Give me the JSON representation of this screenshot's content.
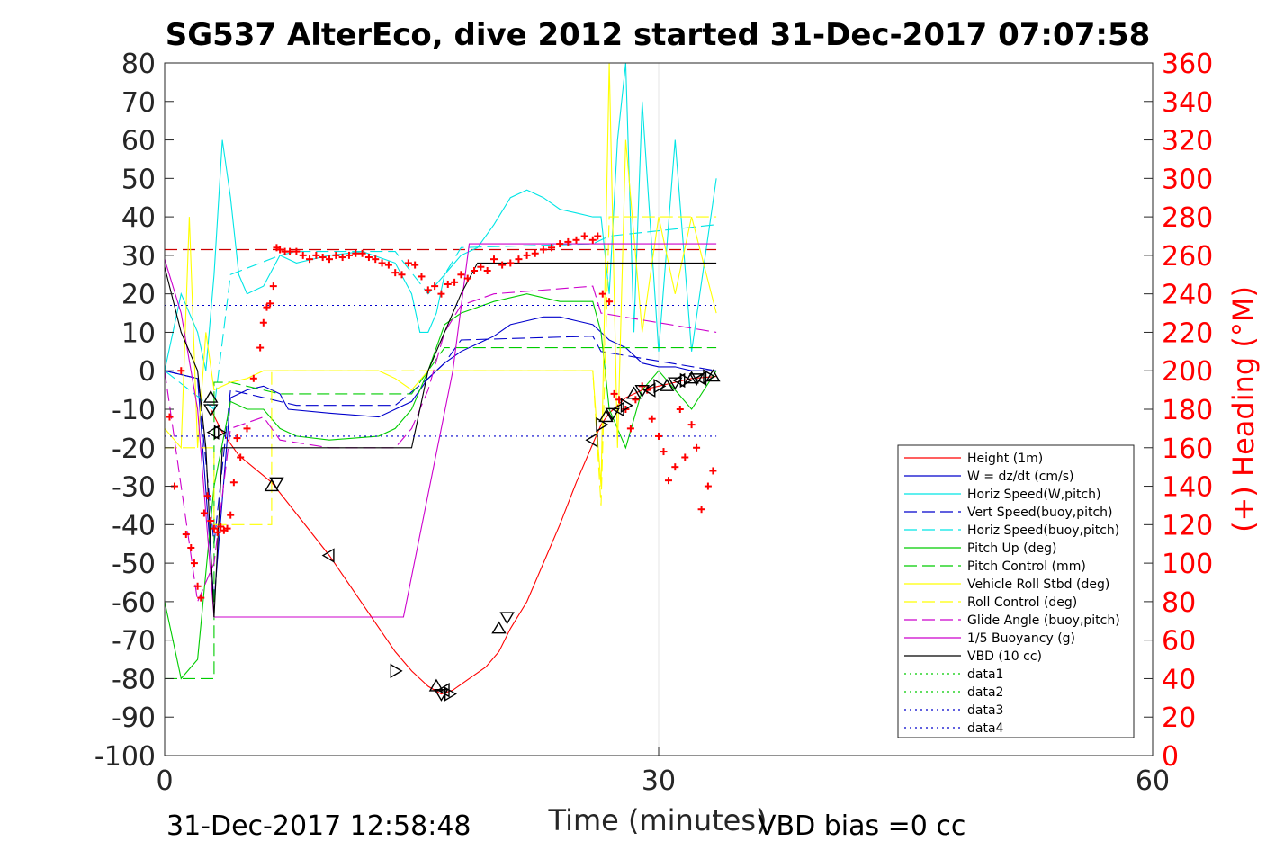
{
  "chart_data": {
    "type": "line",
    "title": "SG537 AlterEco, dive 2012 started 31-Dec-2017 07:07:58",
    "xlabel": "Time (minutes)",
    "ylabel": "",
    "y2label": "(+) Heading (°M)",
    "xlim": [
      0,
      60
    ],
    "ylim": [
      -100,
      80
    ],
    "y2lim": [
      0,
      360
    ],
    "xticks": [
      "0",
      "30",
      "60"
    ],
    "yticks": [
      "80",
      "70",
      "60",
      "50",
      "40",
      "30",
      "20",
      "10",
      "0",
      "-10",
      "-20",
      "-30",
      "-40",
      "-50",
      "-60",
      "-70",
      "-80",
      "-90",
      "-100"
    ],
    "y2ticks": [
      "360",
      "340",
      "320",
      "300",
      "280",
      "260",
      "240",
      "220",
      "200",
      "180",
      "160",
      "140",
      "120",
      "100",
      "80",
      "60",
      "40",
      "20",
      "0"
    ],
    "grid": "x only at 30",
    "legend_position": "bottom-right",
    "footer_left": "31-Dec-2017 12:58:48",
    "footer_right": "VBD bias =0 cc",
    "series": [
      {
        "name": "Height (1m)",
        "color": "#ff0000",
        "style": "solid",
        "x": [
          2.8,
          3.5,
          4.5,
          6.5,
          10,
          14,
          15,
          16,
          16.8,
          17.5,
          18.5,
          19.5,
          20.3,
          21,
          22,
          23,
          24,
          25,
          26,
          26.5,
          27,
          27.5,
          28,
          29,
          30,
          31,
          32,
          33.5
        ],
        "y": [
          -10,
          -16,
          -22,
          -29,
          -48,
          -73,
          -78,
          -82,
          -84,
          -83,
          -80,
          -77,
          -73,
          -67,
          -60,
          -50,
          -40,
          -29,
          -19,
          -14,
          -11,
          -9,
          -7,
          -5,
          -4,
          -3,
          -2,
          -1.5
        ]
      },
      {
        "name": "W = dz/dt (cm/s)",
        "color": "#0000cc",
        "style": "solid",
        "x": [
          0,
          2,
          3,
          4,
          5,
          6,
          7,
          7.5,
          10,
          13,
          14,
          15,
          16,
          17,
          18,
          19,
          20,
          21,
          22,
          23,
          24,
          25,
          26,
          26.5,
          27,
          28,
          29,
          30,
          31,
          32,
          33.5
        ],
        "y": [
          0,
          -2,
          -60,
          -7,
          -5,
          -4,
          -6,
          -10,
          -11,
          -12,
          -10,
          -8,
          -2,
          2,
          5,
          7,
          9,
          12,
          13,
          14,
          14,
          13,
          12,
          10,
          8,
          6,
          2,
          1,
          1,
          0,
          0
        ]
      },
      {
        "name": "Horiz Speed(W,pitch)",
        "color": "#00e5e5",
        "style": "solid",
        "x": [
          0,
          1,
          2,
          2.5,
          3,
          3.5,
          4,
          4.5,
          5,
          6,
          7,
          8,
          10,
          12,
          14,
          15,
          15.5,
          16,
          16.5,
          17,
          18,
          19,
          20,
          21,
          22,
          23,
          24,
          25,
          26,
          26.5,
          27,
          27.5,
          28,
          28.5,
          29,
          30,
          31,
          32,
          33.5
        ],
        "y": [
          0,
          20,
          10,
          0,
          25,
          60,
          45,
          25,
          20,
          22,
          30,
          28,
          30,
          31,
          28,
          20,
          10,
          10,
          15,
          25,
          30,
          32,
          38,
          45,
          47,
          45,
          42,
          41,
          40,
          40,
          20,
          60,
          80,
          10,
          70,
          5,
          60,
          5,
          50
        ]
      },
      {
        "name": "Vert Speed(buoy,pitch)",
        "color": "#0000cc",
        "style": "dashed",
        "x": [
          0,
          2,
          3,
          4,
          7,
          8,
          14,
          16,
          17,
          18,
          26,
          26.5,
          33.5
        ],
        "y": [
          0,
          -2,
          -45,
          -5,
          -8,
          -9,
          -9,
          -2,
          2,
          8,
          9,
          5,
          0
        ]
      },
      {
        "name": "Horiz Speed(buoy,pitch)",
        "color": "#00e5e5",
        "style": "dashed",
        "x": [
          0,
          3,
          4,
          7,
          8,
          14,
          16,
          17,
          18,
          26,
          27,
          33.5
        ],
        "y": [
          0,
          -10,
          25,
          30,
          31,
          31,
          20,
          25,
          32,
          33,
          35,
          38
        ]
      },
      {
        "name": "Pitch Up (deg)",
        "color": "#00cc00",
        "style": "solid",
        "x": [
          0,
          1,
          2,
          3,
          4,
          5,
          6,
          7,
          8,
          10,
          13,
          14,
          15,
          16,
          17,
          18,
          20,
          22,
          24,
          26,
          26.5,
          27,
          28,
          29,
          30,
          31,
          32,
          33.5
        ],
        "y": [
          -60,
          -80,
          -75,
          -30,
          -8,
          -10,
          -10,
          -15,
          -17,
          -18,
          -17,
          -15,
          -10,
          0,
          12,
          15,
          18,
          20,
          18,
          18,
          10,
          -10,
          -20,
          -5,
          0,
          -5,
          -10,
          0
        ]
      },
      {
        "name": "Pitch Control (mm)",
        "color": "#00cc00",
        "style": "dashed",
        "x": [
          0,
          3,
          3,
          4,
          7,
          7,
          15,
          16,
          17,
          18,
          26,
          26.5,
          33.5
        ],
        "y": [
          -80,
          -80,
          -3,
          -3,
          -6,
          -6,
          -6,
          0,
          6,
          6,
          6,
          6,
          6
        ]
      },
      {
        "name": "Vehicle Roll Stbd (deg)",
        "color": "#ffff00",
        "style": "solid",
        "x": [
          0,
          1,
          1.5,
          2,
          2.5,
          3,
          4,
          5,
          6,
          7,
          8,
          10,
          13,
          14,
          15,
          16,
          17,
          18,
          20,
          22,
          24,
          26,
          26.5,
          27,
          27.5,
          28,
          29,
          30,
          31,
          32,
          33.5
        ],
        "y": [
          -15,
          -20,
          40,
          -20,
          10,
          -5,
          -3,
          -2,
          0,
          0,
          0,
          0,
          0,
          -2,
          -5,
          0,
          0,
          0,
          0,
          0,
          0,
          0,
          -30,
          80,
          -20,
          60,
          10,
          40,
          20,
          40,
          15
        ]
      },
      {
        "name": "Roll Control (deg)",
        "color": "#ffff00",
        "style": "dashed",
        "x": [
          0,
          3,
          3,
          6.5,
          6.5,
          26,
          26.5,
          27,
          33.5
        ],
        "y": [
          -20,
          -20,
          -40,
          -40,
          0,
          0,
          -35,
          40,
          40
        ]
      },
      {
        "name": "Glide Angle (buoy,pitch)",
        "color": "#cc00cc",
        "style": "dashed",
        "x": [
          0,
          2,
          3,
          4,
          6,
          7,
          10,
          14,
          15,
          16,
          17,
          18,
          20,
          26,
          26.5,
          33.5
        ],
        "y": [
          0,
          -60,
          -50,
          -15,
          -12,
          -18,
          -20,
          -20,
          -15,
          -5,
          10,
          17,
          20,
          22,
          15,
          10
        ]
      },
      {
        "name": "1/5 Buoyancy (g)",
        "color": "#cc00cc",
        "style": "solid",
        "x": [
          0,
          1,
          2,
          3,
          4,
          14.5,
          17.5,
          18.5,
          33.5
        ],
        "y": [
          29,
          15,
          -10,
          -64,
          -64,
          -64,
          0,
          33,
          33
        ]
      },
      {
        "name": "VBD (10 cc)",
        "color": "#000000",
        "style": "solid",
        "x": [
          0,
          1,
          2,
          2.5,
          3,
          3.5,
          4,
          6,
          7,
          15,
          16,
          17,
          18,
          19,
          33.5
        ],
        "y": [
          27,
          10,
          0,
          -20,
          -64,
          -20,
          -20,
          -20,
          -20,
          -20,
          0,
          10,
          20,
          28,
          28
        ]
      },
      {
        "name": "data1",
        "color": "#00cc00",
        "style": "dotted",
        "x": [],
        "y": []
      },
      {
        "name": "data2",
        "color": "#00cc00",
        "style": "dotted",
        "x": [],
        "y": []
      },
      {
        "name": "data3",
        "color": "#0000cc",
        "style": "dotted",
        "x": [
          0,
          33.5
        ],
        "y": [
          17,
          17
        ]
      },
      {
        "name": "data4",
        "color": "#0000cc",
        "style": "dotted",
        "x": [
          0,
          33.5
        ],
        "y": [
          -17,
          -17
        ]
      }
    ],
    "reference_lines": [
      {
        "color": "#cc0000",
        "style": "dashed",
        "y": 31.5,
        "x": [
          0,
          33.5
        ]
      }
    ],
    "heading_points": {
      "color": "#ff0000",
      "marker": "+",
      "x": [
        0.3,
        0.6,
        1,
        1.3,
        1.6,
        1.8,
        2,
        2.2,
        2.4,
        2.6,
        2.8,
        3,
        3.2,
        3.4,
        3.6,
        3.8,
        4,
        4.2,
        4.4,
        4.6,
        5,
        5.4,
        5.8,
        6,
        6.2,
        6.4,
        6.6,
        6.8,
        7,
        7.3,
        7.6,
        8,
        8.4,
        8.8,
        9.2,
        9.6,
        10,
        10.4,
        10.8,
        11.2,
        11.6,
        12,
        12.4,
        12.8,
        13.2,
        13.6,
        14,
        14.4,
        14.8,
        15.2,
        15.6,
        16,
        16.4,
        16.8,
        17.2,
        17.6,
        18,
        18.4,
        18.8,
        19.2,
        19.6,
        20,
        20.5,
        21,
        21.5,
        22,
        22.5,
        23,
        23.5,
        24,
        24.5,
        25,
        25.5,
        26,
        26.3,
        26.6,
        27,
        27.3,
        27.6,
        28,
        28.3,
        28.6,
        29,
        29.3,
        29.6,
        30,
        30.3,
        30.6,
        31,
        31.3,
        31.6,
        32,
        32.3,
        32.6,
        33,
        33.3
      ],
      "y": [
        176,
        140,
        200,
        115,
        108,
        100,
        88,
        82,
        126,
        135,
        122,
        118,
        116,
        119,
        117,
        118,
        125,
        142,
        165,
        155,
        170,
        196,
        212,
        225,
        233,
        235,
        244,
        264,
        263,
        262,
        262,
        262,
        260,
        258,
        260,
        259,
        258,
        260,
        259,
        260,
        261,
        261,
        259,
        258,
        256,
        255,
        251,
        250,
        256,
        255,
        249,
        242,
        244,
        240,
        245,
        246,
        250,
        248,
        252,
        254,
        252,
        258,
        255,
        256,
        258,
        260,
        261,
        263,
        264,
        266,
        267,
        268,
        270,
        268,
        270,
        240,
        236,
        188,
        185,
        180,
        170,
        185,
        192,
        190,
        175,
        166,
        158,
        143,
        150,
        180,
        155,
        172,
        160,
        128,
        140,
        148
      ]
    },
    "markers": {
      "color": "#000000",
      "shapes": [
        "triangle-up",
        "triangle-down",
        "triangle-left",
        "triangle-right"
      ],
      "x": [
        2.8,
        2.8,
        3,
        3.3,
        6.5,
        6.8,
        10,
        14,
        16.5,
        16.8,
        17,
        17.3,
        20.3,
        20.8,
        26,
        26.5,
        26.8,
        27.2,
        27.6,
        28,
        28.5,
        29,
        29.5,
        30,
        30.5,
        31,
        31.3,
        31.6,
        32,
        32.3,
        32.6,
        33,
        33.3
      ],
      "y": [
        -7,
        -10,
        -16,
        -16,
        -30,
        -29,
        -48,
        -78,
        -82,
        -84,
        -83,
        -84,
        -67,
        -64,
        -18,
        -14,
        -12,
        -11,
        -10,
        -9,
        -6,
        -5,
        -5,
        -4,
        -4,
        -3,
        -2.5,
        -2.5,
        -2,
        -2,
        -2,
        -1.5,
        -1.5
      ]
    }
  }
}
